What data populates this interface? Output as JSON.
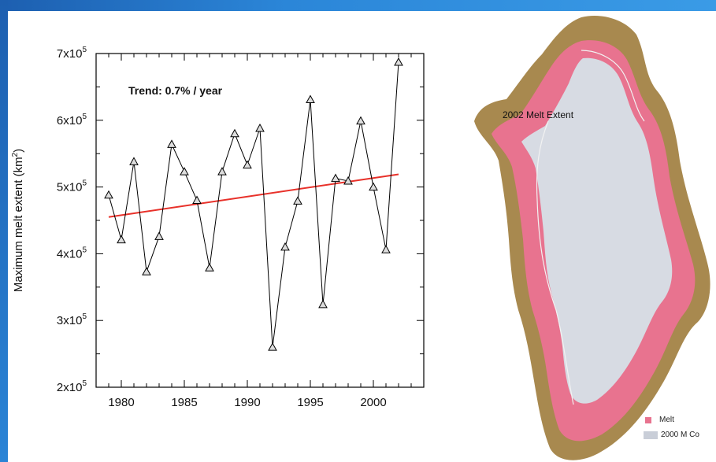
{
  "chart_data": {
    "type": "line",
    "ylabel_main": "Maximum melt extent (km",
    "ylabel_sup": "2",
    "ylabel_end": ")",
    "annotation": "Trend: 0.7% / year",
    "xlim": [
      1978,
      2004
    ],
    "ylim": [
      200000,
      700000
    ],
    "x_ticks": [
      1980,
      1985,
      1990,
      1995,
      2000
    ],
    "y_ticks": [
      {
        "value": 200000,
        "base": "2x10",
        "exp": "5"
      },
      {
        "value": 300000,
        "base": "3x10",
        "exp": "5"
      },
      {
        "value": 400000,
        "base": "4x10",
        "exp": "5"
      },
      {
        "value": 500000,
        "base": "5x10",
        "exp": "5"
      },
      {
        "value": 600000,
        "base": "6x10",
        "exp": "5"
      },
      {
        "value": 700000,
        "base": "7x10",
        "exp": "5"
      }
    ],
    "series": [
      {
        "color": "#000000",
        "marker": "triangle",
        "x": [
          1979,
          1980,
          1981,
          1982,
          1983,
          1984,
          1985,
          1986,
          1987,
          1988,
          1989,
          1990,
          1991,
          1992,
          1993,
          1994,
          1995,
          1996,
          1997,
          1998,
          1999,
          2000,
          2001,
          2002
        ],
        "y": [
          488000,
          421000,
          538000,
          373000,
          426000,
          564000,
          523000,
          480000,
          379000,
          523000,
          580000,
          533000,
          588000,
          260000,
          410000,
          479000,
          631000,
          324000,
          513000,
          509000,
          599000,
          500000,
          406000,
          687000
        ]
      },
      {
        "color": "#e8312a",
        "type": "trend",
        "x": [
          1979,
          2002
        ],
        "y": [
          455000,
          519000
        ]
      }
    ],
    "grid": false
  },
  "map": {
    "label": "2002 Melt Extent",
    "legend": [
      {
        "label": "Melt",
        "color": "#e8738f"
      },
      {
        "label": "2000 M Co",
        "color": "#c9ced8"
      }
    ]
  }
}
